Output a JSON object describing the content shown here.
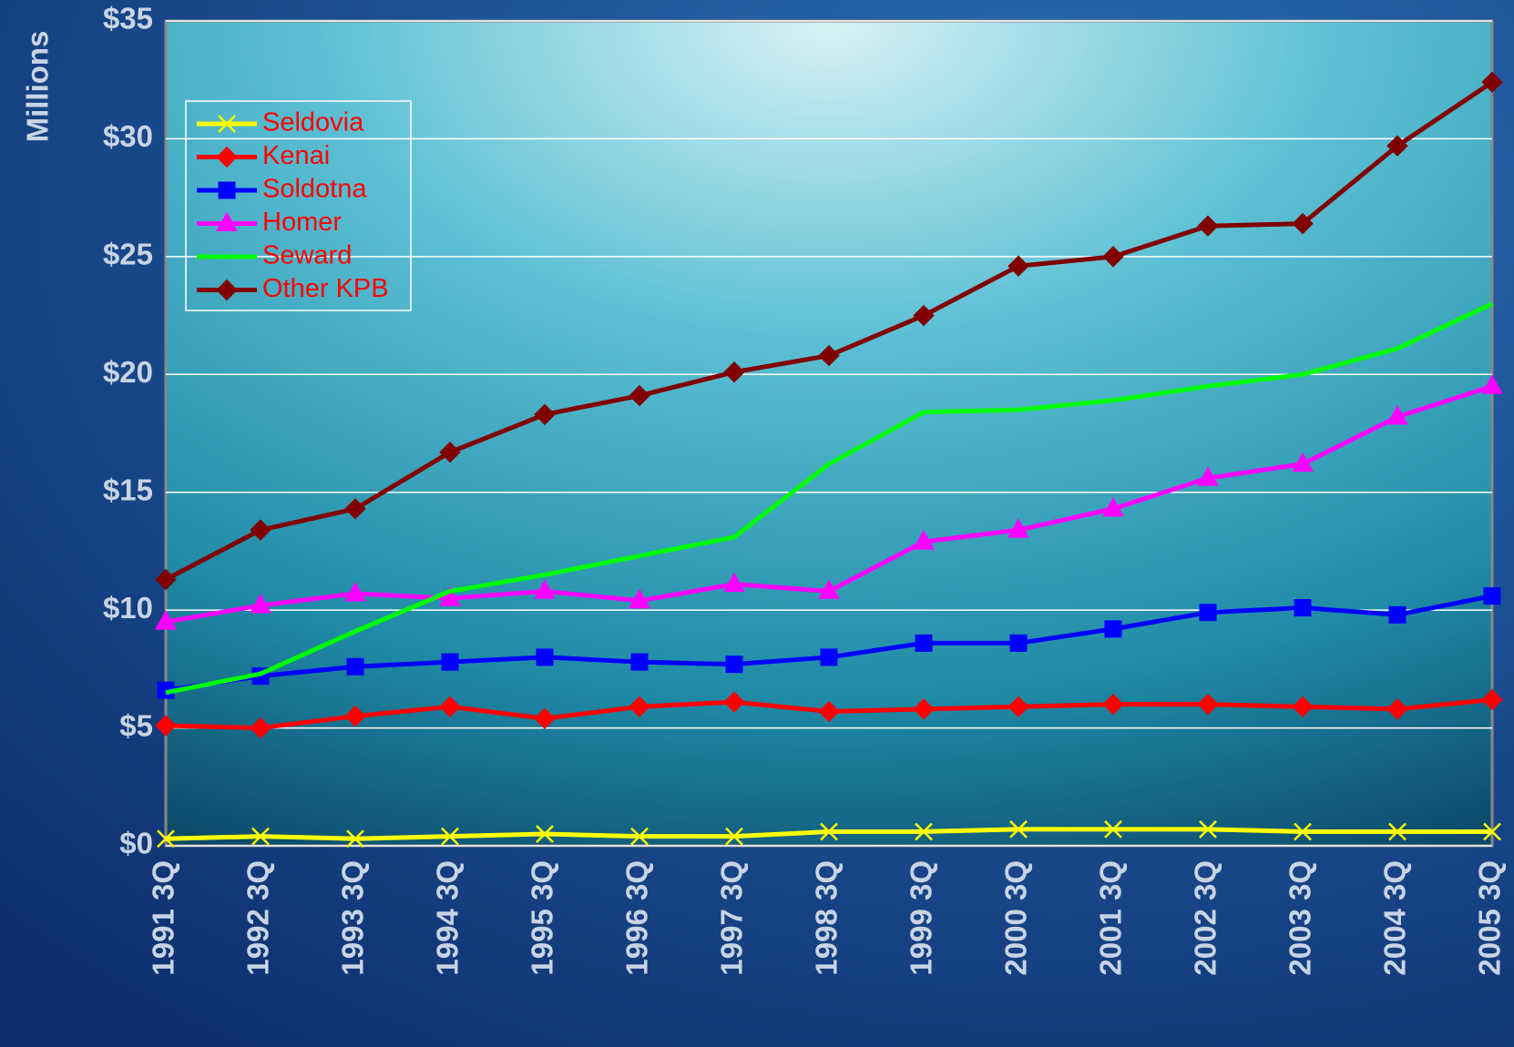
{
  "chart_data": {
    "type": "line",
    "y_label": "Millions",
    "categories": [
      "1991 3Q",
      "1992 3Q",
      "1993 3Q",
      "1994 3Q",
      "1995 3Q",
      "1996 3Q",
      "1997 3Q",
      "1998 3Q",
      "1999 3Q",
      "2000 3Q",
      "2001 3Q",
      "2002 3Q",
      "2003 3Q",
      "2004 3Q",
      "2005 3Q"
    ],
    "series": [
      {
        "name": "Seldovia",
        "color": "#ffff00",
        "marker": "x",
        "values": [
          0.3,
          0.4,
          0.3,
          0.4,
          0.5,
          0.4,
          0.4,
          0.6,
          0.6,
          0.7,
          0.7,
          0.7,
          0.6,
          0.6,
          0.6
        ]
      },
      {
        "name": "Kenai",
        "color": "#ff0000",
        "marker": "diamond",
        "values": [
          5.1,
          5.0,
          5.5,
          5.9,
          5.4,
          5.9,
          6.1,
          5.7,
          5.8,
          5.9,
          6.0,
          6.0,
          5.9,
          5.8,
          6.2
        ]
      },
      {
        "name": "Soldotna",
        "color": "#0000ff",
        "marker": "square",
        "values": [
          6.6,
          7.2,
          7.6,
          7.8,
          8.0,
          7.8,
          7.7,
          8.0,
          8.6,
          8.6,
          9.2,
          9.9,
          10.1,
          9.8,
          10.6
        ]
      },
      {
        "name": "Homer",
        "color": "#ff00ff",
        "marker": "triangle",
        "values": [
          9.5,
          10.2,
          10.7,
          10.5,
          10.8,
          10.4,
          11.1,
          10.8,
          12.9,
          13.4,
          14.3,
          15.6,
          16.2,
          18.2,
          19.5
        ]
      },
      {
        "name": "Seward",
        "color": "#00ff00",
        "marker": "none",
        "values": [
          6.5,
          7.3,
          9.1,
          10.8,
          11.5,
          12.3,
          13.1,
          16.2,
          18.4,
          18.5,
          18.9,
          19.5,
          20.0,
          21.1,
          23.0
        ]
      },
      {
        "name": "Other KPB",
        "color": "#800000",
        "marker": "diamond",
        "values": [
          11.3,
          13.4,
          14.3,
          16.7,
          18.3,
          19.1,
          20.1,
          20.8,
          22.5,
          24.6,
          25.0,
          26.3,
          26.4,
          29.7,
          32.4
        ]
      }
    ],
    "ylim": [
      0,
      35
    ],
    "yticks": [
      {
        "value": 0,
        "label": "$0"
      },
      {
        "value": 5,
        "label": "$5"
      },
      {
        "value": 10,
        "label": "$10"
      },
      {
        "value": 15,
        "label": "$15"
      },
      {
        "value": 20,
        "label": "$20"
      },
      {
        "value": 25,
        "label": "$25"
      },
      {
        "value": 30,
        "label": "$30"
      },
      {
        "value": 35,
        "label": "$35"
      }
    ],
    "grid": true,
    "legend": "top-left"
  }
}
